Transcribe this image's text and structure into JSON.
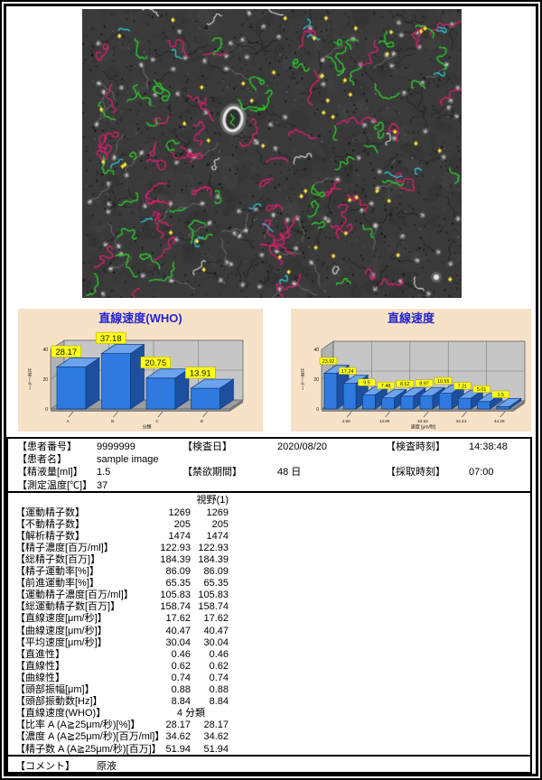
{
  "report": {
    "patient_info": {
      "rows": [
        {
          "cells": [
            {
              "label": "【患者番号】",
              "value": "9999999"
            },
            {
              "label": "【検査日】",
              "value": "2020/08/20"
            },
            {
              "label": "【検査時刻】",
              "value": "14:38:48"
            }
          ]
        },
        {
          "cells": [
            {
              "label": "【患者名】",
              "value": "sample image"
            }
          ]
        },
        {
          "cells": [
            {
              "label": "【精液量[ml]】",
              "value": "1.5"
            },
            {
              "label": "【禁欲期間】",
              "value": "48 日"
            },
            {
              "label": "【採取時刻】",
              "value": "07:00"
            }
          ]
        },
        {
          "cells": [
            {
              "label": "【測定温度[℃]】",
              "value": "37"
            }
          ]
        }
      ]
    },
    "measurements": {
      "column_header": "視野(1)",
      "rows": [
        {
          "label": "【運動精子数】",
          "v1": "1269",
          "v2": "1269"
        },
        {
          "label": "【不動精子数】",
          "v1": "205",
          "v2": "205"
        },
        {
          "label": "【解析精子数】",
          "v1": "1474",
          "v2": "1474"
        },
        {
          "label": "【精子濃度[百万/ml]】",
          "v1": "122.93",
          "v2": "122.93"
        },
        {
          "label": "【総精子数[百万]】",
          "v1": "184.39",
          "v2": "184.39"
        },
        {
          "label": "【精子運動率[%]】",
          "v1": "86.09",
          "v2": "86.09"
        },
        {
          "label": "【前進運動率[%]】",
          "v1": "65.35",
          "v2": "65.35"
        },
        {
          "label": "【運動精子濃度[百万/ml]】",
          "v1": "105.83",
          "v2": "105.83"
        },
        {
          "label": "【総運動精子数[百万]】",
          "v1": "158.74",
          "v2": "158.74"
        },
        {
          "label": "【直線速度[μm/秒]】",
          "v1": "17.62",
          "v2": "17.62"
        },
        {
          "label": "【曲線速度[μm/秒]】",
          "v1": "40.47",
          "v2": "40.47"
        },
        {
          "label": "【平均速度[μm/秒]】",
          "v1": "30.04",
          "v2": "30.04"
        },
        {
          "label": "【直進性】",
          "v1": "0.46",
          "v2": "0.46"
        },
        {
          "label": "【直線性】",
          "v1": "0.62",
          "v2": "0.62"
        },
        {
          "label": "【曲線性】",
          "v1": "0.74",
          "v2": "0.74"
        },
        {
          "label": "【頭部振幅[μm]】",
          "v1": "0.88",
          "v2": "0.88"
        },
        {
          "label": "【頭部振動数[Hz]】",
          "v1": "8.84",
          "v2": "8.84"
        },
        {
          "label": "【直線速度(WHO)】",
          "v1": "4 分類",
          "v2": "",
          "wide": true
        },
        {
          "label": "【比率 A (A≧25μm/秒)[%]】",
          "v1": "28.17",
          "v2": "28.17"
        },
        {
          "label": "【濃度 A (A≧25μm/秒)[百万/ml]】",
          "v1": "34.62",
          "v2": "34.62"
        },
        {
          "label": "【精子数 A (A≧25μm/秒)[百万]】",
          "v1": "51.94",
          "v2": "51.94"
        }
      ]
    },
    "comment": {
      "label": "【コメント】",
      "value": "原液"
    }
  },
  "microscopy": {
    "description": "phase-contrast sperm motility tracking image",
    "bg_color": "#3a3a3a",
    "track_colors": {
      "progressive_track": "#d6216e",
      "motile_track": "#2fca2f",
      "slow_track": "#2ec8dc",
      "trace_track": "#e0e0e0",
      "immotile_marker": "#ecd11f"
    }
  },
  "chart_data": [
    {
      "type": "bar",
      "style": "3d",
      "title": "直線速度(WHO)",
      "categories": [
        "A",
        "B",
        "C",
        "D"
      ],
      "values": [
        28.17,
        37.18,
        20.75,
        13.91
      ],
      "xlabel": "分類",
      "ylabel": "比率[%]",
      "ylim": [
        0,
        40
      ],
      "yticks": [
        0,
        20,
        40
      ],
      "grid": true,
      "legend": "none",
      "bar_color": "#2e7ade",
      "label_bg": "#ffff1a",
      "panel_bg": "#f7e2c8",
      "title_color": "#2424cc"
    },
    {
      "type": "bar",
      "style": "3d",
      "title": "直線速度",
      "values": [
        23.92,
        17.24,
        9.5,
        7.48,
        8.62,
        8.97,
        10.55,
        7.21,
        5.01,
        1.5
      ],
      "xtick_labels": [
        "4.98",
        "14.80",
        "24.62",
        "34.44",
        "44.26"
      ],
      "xtick_bar_indices": [
        1,
        3,
        5,
        7,
        9
      ],
      "xlabel": "速度 [μm/秒]",
      "ylabel": "比率[%]",
      "ylim": [
        0,
        40
      ],
      "yticks": [
        0,
        20,
        40
      ],
      "grid": true,
      "legend": "none",
      "bar_color": "#2e7ade",
      "label_bg": "#ffff1a",
      "panel_bg": "#f7e2c8",
      "title_color": "#2424cc"
    }
  ]
}
